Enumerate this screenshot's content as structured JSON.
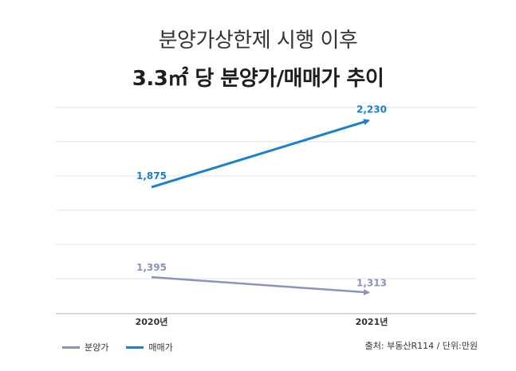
{
  "title_line1": "분양가상한제 시행 이후",
  "title_line2": "3.3㎡ 당 분양가/매매가 추이",
  "source": "출처: 부동산R114 / 단위:만원",
  "colors": {
    "sale_price": "#1c7fcf",
    "presale_price": "#8a93c0",
    "grid": "#e0e0e0",
    "axis": "#b0b0b0"
  },
  "chart_data": {
    "type": "line",
    "categories": [
      "2020년",
      "2021년"
    ],
    "series": [
      {
        "name": "분양가",
        "values": [
          1395,
          1313
        ],
        "labels": [
          "1,395",
          "1,313"
        ]
      },
      {
        "name": "매매가",
        "values": [
          1875,
          2230
        ],
        "labels": [
          "1,875",
          "2,230"
        ]
      }
    ],
    "ylim": [
      1200,
      2300
    ],
    "grid": true,
    "legend": "bottom-left"
  }
}
